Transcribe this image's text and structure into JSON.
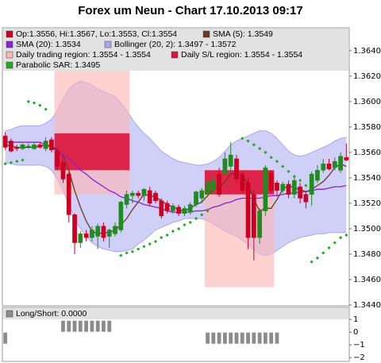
{
  "chart_data": [
    {
      "type": "candlestick",
      "title": "Forex um Neun - Chart 17.10.2013 09:17",
      "ylim": [
        1.344,
        1.3658
      ],
      "yticks": [
        {
          "value": 1.344,
          "label": "1.3440"
        },
        {
          "value": 1.346,
          "label": "1.3460"
        },
        {
          "value": 1.348,
          "label": "1.3480"
        },
        {
          "value": 1.35,
          "label": "1.3500"
        },
        {
          "value": 1.352,
          "label": "1.3520"
        },
        {
          "value": 1.354,
          "label": "1.3540"
        },
        {
          "value": 1.356,
          "label": "1.3560"
        },
        {
          "value": 1.358,
          "label": "1.3580"
        },
        {
          "value": 1.36,
          "label": "1.3600"
        },
        {
          "value": 1.362,
          "label": "1.3620"
        },
        {
          "value": 1.364,
          "label": "1.3640"
        }
      ],
      "candles": {
        "name": "Op:1.3556, Hi:1.3567, Lo:1.3553, Cl:1.3554",
        "color_up": "#1e8c1e",
        "color_down": "#cc0022",
        "open": [
          1.3573,
          1.3569,
          1.3564,
          1.3563,
          1.3565,
          1.3563,
          1.3566,
          1.3563,
          1.357,
          1.3561,
          1.3552,
          1.3543,
          1.3511,
          1.3489,
          1.3496,
          1.3493,
          1.3494,
          1.3502,
          1.3494,
          1.3496,
          1.3499,
          1.3519,
          1.3526,
          1.3528,
          1.3526,
          1.353,
          1.3528,
          1.3522,
          1.352,
          1.3514,
          1.3517,
          1.3512,
          1.3513,
          1.3519,
          1.3524,
          1.3527,
          1.353,
          1.3543,
          1.3543,
          1.3549,
          1.3555,
          1.3543,
          1.3536,
          1.3527,
          1.3493,
          1.3514,
          1.3544,
          1.3536,
          1.353,
          1.3535,
          1.3527,
          1.3533,
          1.3527,
          1.3527,
          1.3538,
          1.3546,
          1.3551,
          1.3548,
          1.3546,
          1.3556
        ],
        "high": [
          1.3576,
          1.3571,
          1.3566,
          1.3567,
          1.3567,
          1.3568,
          1.3568,
          1.3572,
          1.3572,
          1.3564,
          1.3554,
          1.3545,
          1.3512,
          1.3498,
          1.3499,
          1.3502,
          1.3504,
          1.3505,
          1.35,
          1.3505,
          1.3522,
          1.353,
          1.353,
          1.353,
          1.3532,
          1.3533,
          1.353,
          1.3524,
          1.3522,
          1.352,
          1.3519,
          1.3518,
          1.3521,
          1.353,
          1.3532,
          1.354,
          1.3542,
          1.3548,
          1.356,
          1.3568,
          1.3558,
          1.3545,
          1.354,
          1.353,
          1.3516,
          1.355,
          1.3546,
          1.3538,
          1.3537,
          1.3538,
          1.354,
          1.3536,
          1.353,
          1.3545,
          1.355,
          1.3555,
          1.3555,
          1.3556,
          1.356,
          1.3567
        ],
        "low": [
          1.3562,
          1.356,
          1.3561,
          1.3562,
          1.3563,
          1.3562,
          1.3563,
          1.3561,
          1.356,
          1.3546,
          1.3536,
          1.3505,
          1.348,
          1.3485,
          1.349,
          1.349,
          1.3484,
          1.349,
          1.3485,
          1.3494,
          1.3497,
          1.3516,
          1.352,
          1.3524,
          1.3522,
          1.3518,
          1.352,
          1.3508,
          1.3512,
          1.3512,
          1.351,
          1.351,
          1.3511,
          1.3517,
          1.352,
          1.3525,
          1.3528,
          1.3525,
          1.354,
          1.3545,
          1.3536,
          1.3528,
          1.3484,
          1.3475,
          1.3488,
          1.351,
          1.3528,
          1.3526,
          1.3528,
          1.3524,
          1.3524,
          1.352,
          1.3516,
          1.3518,
          1.3536,
          1.3544,
          1.3546,
          1.3546,
          1.3544,
          1.3553
        ],
        "close": [
          1.3564,
          1.3561,
          1.3563,
          1.3566,
          1.3565,
          1.3566,
          1.3564,
          1.3569,
          1.3562,
          1.3549,
          1.3539,
          1.3511,
          1.3489,
          1.3496,
          1.3493,
          1.3499,
          1.3502,
          1.3493,
          1.3499,
          1.3502,
          1.3521,
          1.3527,
          1.3528,
          1.3526,
          1.3531,
          1.352,
          1.3522,
          1.351,
          1.3514,
          1.3518,
          1.3512,
          1.3516,
          1.3519,
          1.3529,
          1.353,
          1.3537,
          1.3538,
          1.3527,
          1.3555,
          1.3558,
          1.3539,
          1.353,
          1.3493,
          1.3493,
          1.3514,
          1.3548,
          1.353,
          1.353,
          1.3535,
          1.3527,
          1.3538,
          1.3524,
          1.3521,
          1.3543,
          1.3546,
          1.3551,
          1.3547,
          1.3553,
          1.3557,
          1.3554
        ]
      },
      "lines": [
        {
          "name": "SMA (5): 1.3549",
          "color": "#6b3a1f",
          "values": [
            1.3566,
            1.3565,
            1.3564,
            1.3564,
            1.3564,
            1.3564,
            1.3565,
            1.3566,
            1.3565,
            1.3562,
            1.3557,
            1.3546,
            1.353,
            1.3517,
            1.3506,
            1.3498,
            1.3496,
            1.3497,
            1.3497,
            1.3499,
            1.3503,
            1.3508,
            1.3515,
            1.3521,
            1.3527,
            1.3526,
            1.3525,
            1.3522,
            1.3519,
            1.3517,
            1.3515,
            1.3514,
            1.3516,
            1.3519,
            1.3521,
            1.3526,
            1.3531,
            1.3532,
            1.3537,
            1.3543,
            1.3543,
            1.3542,
            1.3535,
            1.3523,
            1.3514,
            1.3516,
            1.3516,
            1.3523,
            1.3531,
            1.3534,
            1.3532,
            1.3531,
            1.3529,
            1.3531,
            1.3534,
            1.3537,
            1.3542,
            1.3548,
            1.3551,
            1.3549
          ]
        },
        {
          "name": "SMA (20): 1.3534",
          "color": "#8a22cc",
          "values": [
            1.3568,
            1.3568,
            1.3568,
            1.3568,
            1.3568,
            1.3568,
            1.3568,
            1.3566,
            1.3564,
            1.3561,
            1.3558,
            1.3555,
            1.3551,
            1.3546,
            1.3543,
            1.3539,
            1.3536,
            1.3533,
            1.353,
            1.3528,
            1.3525,
            1.3524,
            1.3522,
            1.3521,
            1.3519,
            1.3518,
            1.3517,
            1.3516,
            1.3514,
            1.3513,
            1.3513,
            1.3513,
            1.3513,
            1.3514,
            1.3514,
            1.3515,
            1.3517,
            1.3518,
            1.352,
            1.3521,
            1.3523,
            1.3524,
            1.3524,
            1.3524,
            1.3524,
            1.3525,
            1.3526,
            1.3526,
            1.3527,
            1.3528,
            1.3528,
            1.3529,
            1.3529,
            1.353,
            1.3531,
            1.3531,
            1.3532,
            1.3533,
            1.3533,
            1.3534
          ]
        }
      ],
      "band": {
        "name": "Bollinger (20, 2): 1.3497 - 1.3572",
        "color": "#a8a8f0",
        "upper": [
          1.3577,
          1.3578,
          1.358,
          1.3581,
          1.3581,
          1.3581,
          1.3581,
          1.3583,
          1.3586,
          1.3593,
          1.3602,
          1.361,
          1.3614,
          1.3616,
          1.3615,
          1.3613,
          1.361,
          1.3608,
          1.3606,
          1.3604,
          1.3599,
          1.3593,
          1.3586,
          1.358,
          1.3575,
          1.3571,
          1.3566,
          1.3561,
          1.3558,
          1.3555,
          1.3553,
          1.3552,
          1.3551,
          1.355,
          1.355,
          1.3551,
          1.3553,
          1.3556,
          1.3561,
          1.3566,
          1.3569,
          1.3571,
          1.3573,
          1.3575,
          1.3577,
          1.3577,
          1.3575,
          1.3571,
          1.3566,
          1.3561,
          1.3558,
          1.3557,
          1.3558,
          1.356,
          1.3562,
          1.3564,
          1.3566,
          1.3569,
          1.3571,
          1.3572
        ],
        "lower": [
          1.3552,
          1.3551,
          1.355,
          1.355,
          1.355,
          1.355,
          1.355,
          1.3549,
          1.3546,
          1.3539,
          1.353,
          1.3519,
          1.3508,
          1.35,
          1.3494,
          1.3489,
          1.3486,
          1.3484,
          1.3483,
          1.3482,
          1.3482,
          1.3483,
          1.3484,
          1.3488,
          1.3491,
          1.3495,
          1.3499,
          1.3501,
          1.3503,
          1.3505,
          1.3506,
          1.3508,
          1.3508,
          1.3508,
          1.3508,
          1.3506,
          1.3504,
          1.3501,
          1.3498,
          1.3496,
          1.3494,
          1.3491,
          1.3488,
          1.3483,
          1.348,
          1.3479,
          1.348,
          1.3483,
          1.3486,
          1.3489,
          1.3491,
          1.3493,
          1.3494,
          1.3495,
          1.3496,
          1.3496,
          1.3497,
          1.3497,
          1.3497,
          1.3497
        ]
      },
      "regions": [
        {
          "name": "Daily trading region: 1.3554 - 1.3554",
          "color": "#ffb4b4",
          "items": [
            {
              "start": 9,
              "end": 21,
              "high": 1.3658,
              "low": 1.3527
            },
            {
              "start": 35,
              "end": 46,
              "high": 1.3546,
              "low": 1.3454
            }
          ]
        },
        {
          "name": "Daily S/L region: 1.3554 - 1.3554",
          "color": "#dc143c",
          "items": [
            {
              "start": 9,
              "end": 21,
              "high": 1.3575,
              "low": 1.3546
            },
            {
              "start": 35,
              "end": 46,
              "high": 1.3546,
              "low": 1.3527
            }
          ]
        }
      ],
      "sar": {
        "name": "Parabolic SAR: 1.3495",
        "color": "#22aa22",
        "values": [
          1.3551,
          1.3552,
          1.3553,
          1.3554,
          1.36,
          1.3599,
          1.3597,
          1.3594,
          null,
          null,
          null,
          null,
          null,
          null,
          null,
          null,
          null,
          null,
          null,
          null,
          1.3479,
          1.3481,
          1.3482,
          1.3484,
          1.3486,
          1.3488,
          1.349,
          1.3493,
          1.3495,
          1.3498,
          1.35,
          1.3503,
          1.3505,
          1.3508,
          1.3511,
          1.3514,
          null,
          null,
          null,
          null,
          null,
          1.3571,
          1.3569,
          1.3566,
          1.3563,
          1.356,
          1.3556,
          1.3553,
          1.3549,
          1.3545,
          1.3541,
          1.3538,
          1.3534,
          1.3474,
          1.3477,
          1.3481,
          1.3485,
          1.3489,
          1.3493,
          1.3495
        ]
      }
    },
    {
      "type": "bar",
      "name": "Long/Short: 0.0000",
      "color": "#8c8c8c",
      "ylim": [
        -2.3,
        1.95
      ],
      "yticks": [
        1,
        0,
        {
          "value": -1,
          "label": "−1"
        },
        {
          "value": -2,
          "label": "−2"
        }
      ],
      "values": [
        -1,
        0,
        0,
        0,
        0,
        0,
        0,
        0,
        0,
        0,
        1,
        1,
        1,
        1,
        1,
        1,
        1,
        1,
        1,
        0,
        0,
        0,
        0,
        0,
        0,
        0,
        0,
        0,
        0,
        0,
        0,
        0,
        0,
        0,
        0,
        -1,
        -1,
        -1,
        -1,
        -1,
        -1,
        -1,
        -1,
        -1,
        -1,
        -1,
        -1,
        -1,
        0,
        0,
        0,
        0,
        0,
        0,
        0,
        0,
        0,
        0,
        0,
        0
      ]
    }
  ]
}
